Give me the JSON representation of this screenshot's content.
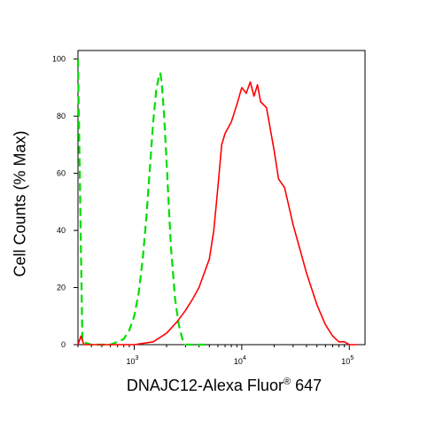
{
  "chart_data": {
    "type": "area",
    "title": "",
    "ylabel": "Cell Counts (% Max)",
    "xlabel": {
      "main": "DNAJC12-Alexa Fluor",
      "superscript": "®",
      "suffix": " 647"
    },
    "xscale": "log",
    "xlim": [
      300,
      140000
    ],
    "ylim": [
      0,
      103
    ],
    "yticks": [
      0,
      20,
      40,
      60,
      80,
      100
    ],
    "xticks": [
      {
        "value": 1000,
        "base": "10",
        "exp": "3"
      },
      {
        "value": 10000,
        "base": "10",
        "exp": "4"
      },
      {
        "value": 100000,
        "base": "10",
        "exp": "5"
      }
    ],
    "grid": false,
    "legend": "none",
    "series": [
      {
        "color": "#00dd00",
        "style": "dashed",
        "x": [
          300,
          330,
          400,
          500,
          600,
          700,
          800,
          900,
          1000,
          1100,
          1200,
          1300,
          1400,
          1500,
          1600,
          1700,
          1750,
          1800,
          1900,
          2000,
          2100,
          2200,
          2400,
          2600,
          2800,
          3000,
          3500,
          4000,
          5000
        ],
        "y": [
          100,
          1,
          0,
          0,
          0,
          1,
          2,
          5,
          10,
          18,
          30,
          45,
          62,
          78,
          89,
          94,
          95,
          92,
          80,
          64,
          48,
          34,
          16,
          7,
          2,
          0,
          0,
          0,
          0
        ]
      },
      {
        "color": "#ff0000",
        "style": "solid",
        "x": [
          300,
          320,
          340,
          400,
          600,
          1000,
          1500,
          2000,
          2500,
          3000,
          3500,
          4000,
          5000,
          5500,
          6000,
          6500,
          7000,
          8000,
          9000,
          10000,
          11000,
          12000,
          13000,
          14000,
          15000,
          17000,
          20000,
          22000,
          25000,
          30000,
          35000,
          40000,
          50000,
          60000,
          70000,
          80000,
          90000,
          100000,
          120000
        ],
        "y": [
          0,
          3,
          0,
          0,
          0,
          0,
          1,
          4,
          8,
          12,
          16,
          20,
          30,
          40,
          55,
          70,
          74,
          78,
          84,
          90,
          88,
          92,
          87,
          91,
          85,
          83,
          68,
          58,
          55,
          42,
          33,
          25,
          14,
          7,
          3,
          1,
          1,
          0,
          0
        ]
      }
    ]
  }
}
